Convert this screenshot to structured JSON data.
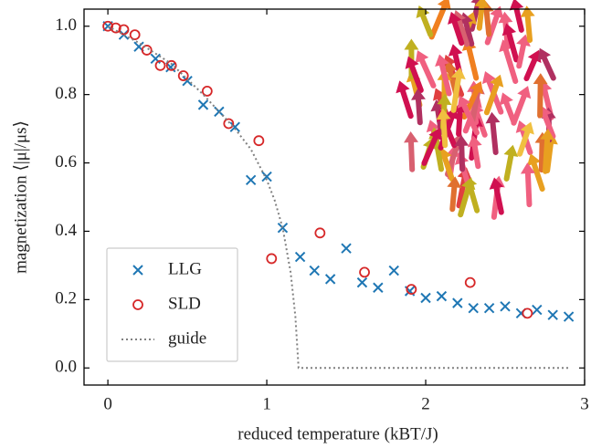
{
  "chart_data": {
    "type": "scatter",
    "xlabel": "reduced temperature (kBT/J)",
    "ylabel": "magnetization ⟨|μ|/μs⟩",
    "xlim": [
      -0.15,
      3.0
    ],
    "ylim": [
      -0.05,
      1.05
    ],
    "xticks": [
      0,
      1,
      2,
      3
    ],
    "yticks": [
      {
        "value": 0,
        "label": "0.0"
      },
      {
        "value": 0.2,
        "label": "0.2"
      },
      {
        "value": 0.4,
        "label": "0.4"
      },
      {
        "value": 0.6,
        "label": "0.6"
      },
      {
        "value": 0.8,
        "label": "0.8"
      },
      {
        "value": 1.0,
        "label": "1.0"
      }
    ],
    "legend": "lower left",
    "series": [
      {
        "name": "LLG",
        "color": "#1f77b4",
        "marker": "x",
        "x": [
          0,
          0.1,
          0.195,
          0.3,
          0.395,
          0.5,
          0.6,
          0.7,
          0.8,
          0.9,
          1.0,
          1.1,
          1.21,
          1.3,
          1.4,
          1.5,
          1.6,
          1.7,
          1.8,
          1.9,
          2.0,
          2.1,
          2.2,
          2.3,
          2.4,
          2.5,
          2.6,
          2.7,
          2.8,
          2.9
        ],
        "values": [
          1.0,
          0.975,
          0.94,
          0.905,
          0.88,
          0.84,
          0.77,
          0.75,
          0.705,
          0.55,
          0.56,
          0.41,
          0.325,
          0.285,
          0.26,
          0.35,
          0.25,
          0.235,
          0.285,
          0.225,
          0.205,
          0.21,
          0.19,
          0.175,
          0.175,
          0.18,
          0.16,
          0.17,
          0.155,
          0.15
        ]
      },
      {
        "name": "SLD",
        "color": "#d62728",
        "marker": "o",
        "x": [
          0,
          0.05,
          0.1,
          0.17,
          0.245,
          0.33,
          0.4,
          0.475,
          0.625,
          0.76,
          0.95,
          1.03,
          1.335,
          1.615,
          1.91,
          2.28,
          2.64
        ],
        "values": [
          1.0,
          0.995,
          0.99,
          0.975,
          0.93,
          0.885,
          0.885,
          0.855,
          0.81,
          0.715,
          0.665,
          0.32,
          0.395,
          0.28,
          0.23,
          0.25,
          0.16
        ]
      },
      {
        "name": "guide",
        "color": "#808080",
        "marker": "dotted-line",
        "x": [
          0,
          0.2,
          0.4,
          0.6,
          0.8,
          0.9,
          1.0,
          1.05,
          1.1,
          1.15,
          1.18,
          1.2,
          2.9
        ],
        "values": [
          1.0,
          0.95,
          0.89,
          0.8,
          0.7,
          0.64,
          0.55,
          0.49,
          0.41,
          0.28,
          0.15,
          0.0,
          0.0
        ]
      }
    ]
  }
}
